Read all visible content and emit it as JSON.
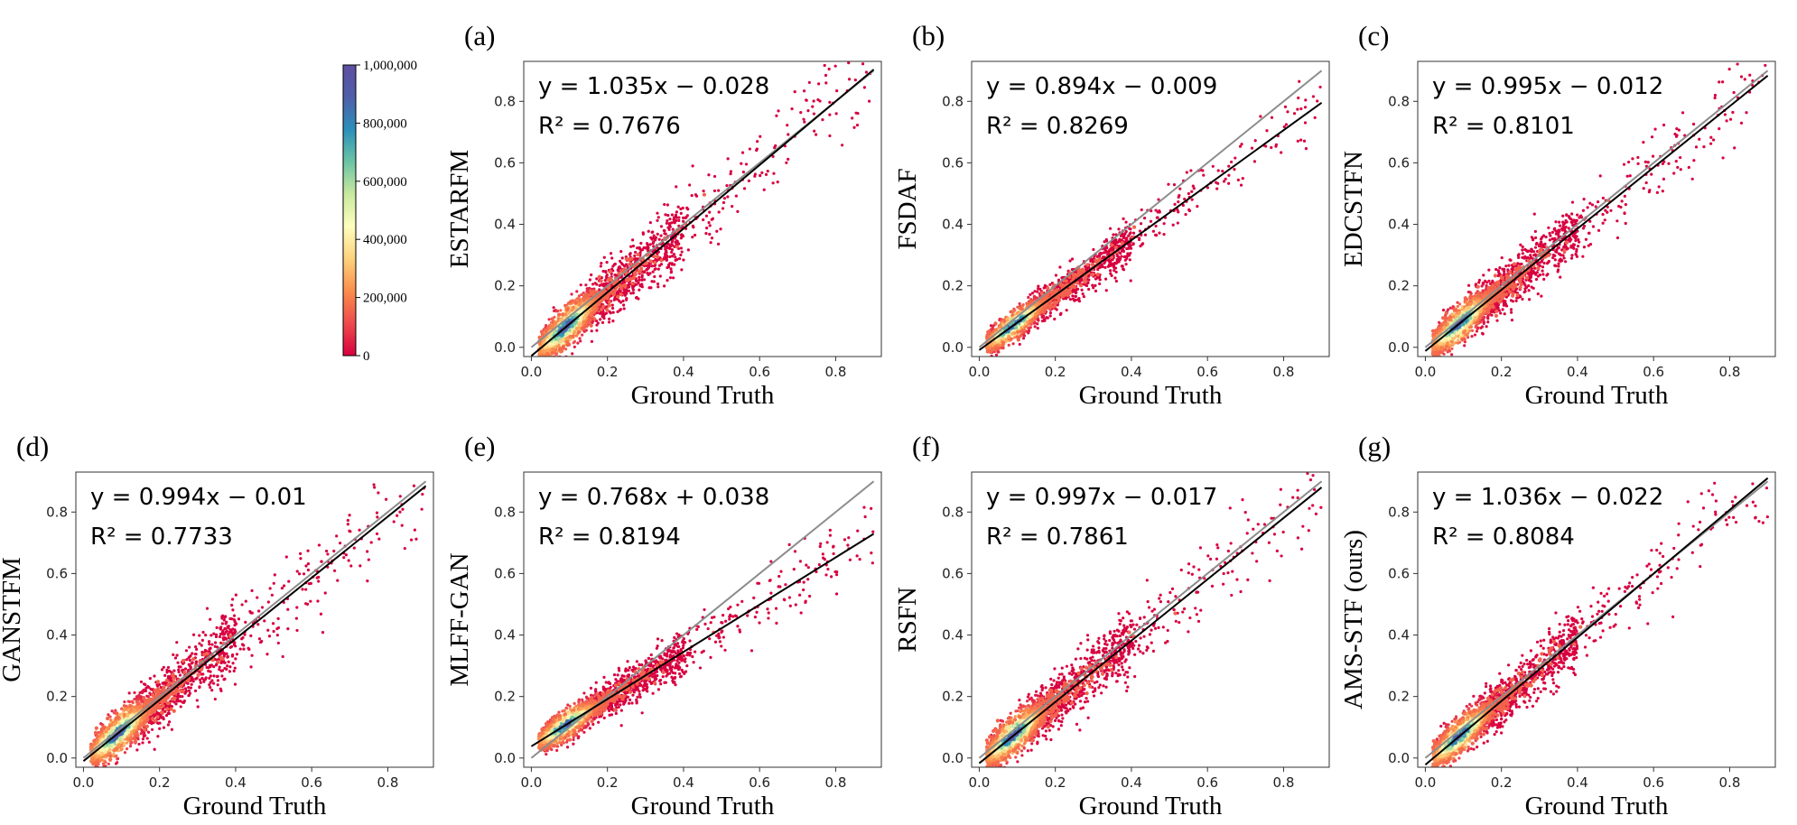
{
  "figure": {
    "colorbar": {
      "ticks": [
        "0",
        "200,000",
        "400,000",
        "600,000",
        "800,000",
        "1,000,000"
      ],
      "tick_values": [
        0,
        200000,
        400000,
        600000,
        800000,
        1000000
      ],
      "colormap": [
        "#d8003f",
        "#ee4a4c",
        "#fb8d4c",
        "#fdd27d",
        "#fefebd",
        "#c9e99e",
        "#6cc4a5",
        "#2b8fbb",
        "#4f5fa9",
        "#5e4fa2"
      ]
    }
  },
  "chart_data": [
    {
      "type": "scatter",
      "panel_label": "(a)",
      "ylabel": "ESTARFM",
      "xlabel": "Ground Truth",
      "equation": "y = 1.035x − 0.028",
      "r2": "R² = 0.7676",
      "slope": 1.035,
      "intercept": -0.028,
      "xlim": [
        -0.02,
        0.92
      ],
      "ylim": [
        -0.03,
        0.93
      ],
      "xticks": [
        "0.0",
        "0.2",
        "0.4",
        "0.6",
        "0.8"
      ],
      "yticks": [
        "0.0",
        "0.2",
        "0.4",
        "0.6",
        "0.8"
      ],
      "spread": 0.045
    },
    {
      "type": "scatter",
      "panel_label": "(b)",
      "ylabel": "FSDAF",
      "xlabel": "Ground Truth",
      "equation": "y = 0.894x − 0.009",
      "r2": "R² = 0.8269",
      "slope": 0.894,
      "intercept": -0.009,
      "xlim": [
        -0.02,
        0.92
      ],
      "ylim": [
        -0.03,
        0.93
      ],
      "xticks": [
        "0.0",
        "0.2",
        "0.4",
        "0.6",
        "0.8"
      ],
      "yticks": [
        "0.0",
        "0.2",
        "0.4",
        "0.6",
        "0.8"
      ],
      "spread": 0.03
    },
    {
      "type": "scatter",
      "panel_label": "(c)",
      "ylabel": "EDCSTFN",
      "xlabel": "Ground Truth",
      "equation": "y = 0.995x − 0.012",
      "r2": "R² = 0.8101",
      "slope": 0.995,
      "intercept": -0.012,
      "xlim": [
        -0.02,
        0.92
      ],
      "ylim": [
        -0.03,
        0.93
      ],
      "xticks": [
        "0.0",
        "0.2",
        "0.4",
        "0.6",
        "0.8"
      ],
      "yticks": [
        "0.0",
        "0.2",
        "0.4",
        "0.6",
        "0.8"
      ],
      "spread": 0.04
    },
    {
      "type": "scatter",
      "panel_label": "(d)",
      "ylabel": "GANSTFM",
      "xlabel": "Ground Truth",
      "equation": "y = 0.994x − 0.01",
      "r2": "R² = 0.7733",
      "slope": 0.994,
      "intercept": -0.01,
      "xlim": [
        -0.02,
        0.92
      ],
      "ylim": [
        -0.03,
        0.93
      ],
      "xticks": [
        "0.0",
        "0.2",
        "0.4",
        "0.6",
        "0.8"
      ],
      "yticks": [
        "0.0",
        "0.2",
        "0.4",
        "0.6",
        "0.8"
      ],
      "spread": 0.045
    },
    {
      "type": "scatter",
      "panel_label": "(e)",
      "ylabel": "MLFF-GAN",
      "xlabel": "Ground Truth",
      "equation": "y = 0.768x + 0.038",
      "r2": "R² = 0.8194",
      "slope": 0.768,
      "intercept": 0.038,
      "xlim": [
        -0.02,
        0.92
      ],
      "ylim": [
        -0.03,
        0.93
      ],
      "xticks": [
        "0.0",
        "0.2",
        "0.4",
        "0.6",
        "0.8"
      ],
      "yticks": [
        "0.0",
        "0.2",
        "0.4",
        "0.6",
        "0.8"
      ],
      "spread": 0.032
    },
    {
      "type": "scatter",
      "panel_label": "(f)",
      "ylabel": "RSFN",
      "xlabel": "Ground Truth",
      "equation": "y = 0.997x − 0.017",
      "r2": "R² = 0.7861",
      "slope": 0.997,
      "intercept": -0.017,
      "xlim": [
        -0.02,
        0.92
      ],
      "ylim": [
        -0.03,
        0.93
      ],
      "xticks": [
        "0.0",
        "0.2",
        "0.4",
        "0.6",
        "0.8"
      ],
      "yticks": [
        "0.0",
        "0.2",
        "0.4",
        "0.6",
        "0.8"
      ],
      "spread": 0.043
    },
    {
      "type": "scatter",
      "panel_label": "(g)",
      "ylabel": "AMS-STF (ours)",
      "xlabel": "Ground Truth",
      "equation": "y = 1.036x − 0.022",
      "r2": "R² = 0.8084",
      "slope": 1.036,
      "intercept": -0.022,
      "xlim": [
        -0.02,
        0.92
      ],
      "ylim": [
        -0.03,
        0.93
      ],
      "xticks": [
        "0.0",
        "0.2",
        "0.4",
        "0.6",
        "0.8"
      ],
      "yticks": [
        "0.0",
        "0.2",
        "0.4",
        "0.6",
        "0.8"
      ],
      "spread": 0.04
    }
  ]
}
